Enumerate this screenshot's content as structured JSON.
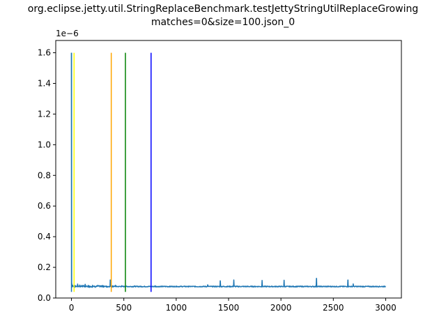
{
  "chart_data": {
    "type": "line",
    "title_lines": [
      "org.eclipse.jetty.util.StringReplaceBenchmark.testJettyStringUtilReplaceGrowing",
      "matches=0&size=100.json_0"
    ],
    "xlabel": "",
    "ylabel": "",
    "y_offset_label": "1e−6",
    "xlim": [
      -150,
      3150
    ],
    "ylim": [
      0,
      1.68e-06
    ],
    "x_ticks": [
      0,
      500,
      1000,
      1500,
      2000,
      2500,
      3000
    ],
    "x_tick_labels": [
      "0",
      "500",
      "1000",
      "1500",
      "2000",
      "2500",
      "3000"
    ],
    "y_ticks": [
      0,
      2e-07,
      4e-07,
      6e-07,
      8e-07,
      1e-06,
      1.2e-06,
      1.4e-06,
      1.6e-06
    ],
    "y_tick_labels": [
      "0.0",
      "0.2",
      "0.4",
      "0.6",
      "0.8",
      "1.0",
      "1.2",
      "1.4",
      "1.6"
    ],
    "grid": false,
    "series": [
      {
        "color": "#1f77b4",
        "baseline": 7.5e-08,
        "x_range": [
          0,
          3000
        ],
        "start_spike": {
          "x": 0,
          "y": 1.6e-06
        },
        "points": [
          [
            0,
            1.6e-06
          ],
          [
            3,
            9.5e-08
          ],
          [
            10,
            8e-08
          ],
          [
            30,
            7.8e-08
          ],
          [
            60,
            8.8e-08
          ],
          [
            80,
            8.5e-08
          ],
          [
            100,
            8.2e-08
          ],
          [
            130,
            8.7e-08
          ],
          [
            160,
            8e-08
          ],
          [
            200,
            8.3e-08
          ],
          [
            250,
            8.1e-08
          ],
          [
            300,
            8.2e-08
          ],
          [
            370,
            1.18e-07
          ],
          [
            380,
            8e-08
          ],
          [
            420,
            8.3e-08
          ],
          [
            480,
            8e-08
          ],
          [
            600,
            7.9e-08
          ],
          [
            800,
            8e-08
          ],
          [
            1000,
            7.8e-08
          ],
          [
            1300,
            8.6e-08
          ],
          [
            1420,
            1.12e-07
          ],
          [
            1550,
            1.18e-07
          ],
          [
            1820,
            1.15e-07
          ],
          [
            2030,
            1.16e-07
          ],
          [
            2340,
            1.28e-07
          ],
          [
            2640,
            1.17e-07
          ],
          [
            2690,
            9.2e-08
          ],
          [
            3000,
            7.6e-08
          ]
        ]
      }
    ],
    "markers": [
      {
        "x": 0,
        "color": "#1f77b4",
        "y_top": 1.6e-06
      },
      {
        "x": 25,
        "color": "#ffff00",
        "y_top": 1.6e-06
      },
      {
        "x": 380,
        "color": "#ffa500",
        "y_top": 1.6e-06
      },
      {
        "x": 515,
        "color": "#008000",
        "y_top": 1.6e-06
      },
      {
        "x": 760,
        "color": "#0000ff",
        "y_top": 1.6e-06
      }
    ]
  }
}
